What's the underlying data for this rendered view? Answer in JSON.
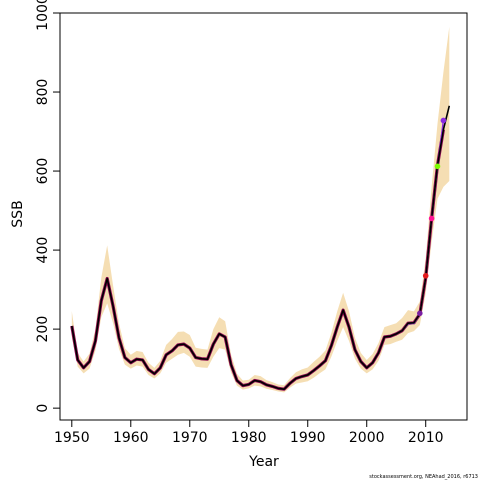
{
  "chart_data": {
    "type": "line",
    "xlabel": "Year",
    "ylabel": "SSB",
    "xlim": [
      1948,
      2017
    ],
    "ylim": [
      -30,
      1000
    ],
    "xticks": [
      "1950",
      "1960",
      "1970",
      "1980",
      "1990",
      "2000",
      "2010"
    ],
    "yticks": [
      "0",
      "200",
      "400",
      "600",
      "800",
      "1000"
    ],
    "grid": false,
    "legend": "none",
    "colors": {
      "band": "#f5deb3",
      "line": "#000000",
      "retro": "#8b0a50"
    },
    "series": [
      {
        "x": [
          1950,
          1951,
          1952,
          1953,
          1954,
          1955,
          1956,
          1957,
          1958,
          1959,
          1960,
          1961,
          1962,
          1963,
          1964,
          1965,
          1966,
          1967,
          1968,
          1969,
          1970,
          1971,
          1972,
          1973,
          1974,
          1975,
          1976,
          1977,
          1978,
          1979,
          1980,
          1981,
          1982,
          1983,
          1984,
          1985,
          1986,
          1987,
          1988,
          1989,
          1990,
          1991,
          1992,
          1993,
          1994,
          1995,
          1996,
          1997,
          1998,
          1999,
          2000,
          2001,
          2002,
          2003,
          2004,
          2005,
          2006,
          2007,
          2008,
          2009,
          2010,
          2011,
          2012,
          2013,
          2014
        ],
        "values": [
          208,
          122,
          102,
          118,
          170,
          272,
          328,
          258,
          178,
          128,
          115,
          124,
          122,
          98,
          87,
          102,
          135,
          145,
          160,
          162,
          152,
          128,
          125,
          124,
          162,
          188,
          180,
          110,
          70,
          57,
          60,
          70,
          67,
          59,
          55,
          50,
          48,
          63,
          75,
          80,
          84,
          95,
          107,
          120,
          158,
          205,
          248,
          205,
          148,
          118,
          102,
          115,
          140,
          180,
          182,
          188,
          196,
          215,
          216,
          238,
          330,
          480,
          615,
          705,
          765
        ],
        "lower": [
          180,
          105,
          88,
          100,
          145,
          230,
          265,
          215,
          150,
          110,
          100,
          108,
          105,
          84,
          75,
          88,
          115,
          125,
          135,
          140,
          130,
          105,
          103,
          102,
          130,
          152,
          148,
          90,
          57,
          47,
          50,
          57,
          55,
          49,
          46,
          42,
          40,
          52,
          62,
          65,
          68,
          77,
          88,
          98,
          130,
          170,
          205,
          170,
          125,
          100,
          88,
          98,
          120,
          160,
          162,
          168,
          173,
          190,
          195,
          210,
          290,
          420,
          530,
          560,
          575
        ],
        "upper": [
          246,
          140,
          118,
          138,
          200,
          330,
          412,
          310,
          215,
          152,
          135,
          145,
          142,
          115,
          102,
          120,
          160,
          175,
          193,
          194,
          185,
          153,
          150,
          148,
          200,
          230,
          220,
          136,
          87,
          70,
          72,
          84,
          81,
          71,
          66,
          60,
          58,
          76,
          91,
          98,
          103,
          117,
          130,
          146,
          190,
          245,
          292,
          245,
          178,
          140,
          122,
          137,
          165,
          205,
          210,
          215,
          228,
          248,
          245,
          270,
          380,
          560,
          720,
          850,
          965
        ]
      }
    ],
    "retrospective": [
      {
        "years": [
          2005,
          2006,
          2007,
          2008,
          2009
        ],
        "values": [
          188,
          196,
          212,
          214,
          240
        ],
        "color": "#7a1fa2"
      },
      {
        "years": [
          2005,
          2006,
          2007,
          2008,
          2009,
          2010
        ],
        "values": [
          188,
          196,
          214,
          214,
          238,
          335
        ],
        "color": "#e41a1c"
      },
      {
        "years": [
          2005,
          2006,
          2007,
          2008,
          2009,
          2010,
          2011
        ],
        "values": [
          188,
          196,
          214,
          214,
          238,
          330,
          480
        ],
        "color": "#ff1493"
      },
      {
        "years": [
          2005,
          2006,
          2007,
          2008,
          2009,
          2010,
          2011,
          2012
        ],
        "values": [
          188,
          196,
          214,
          214,
          238,
          330,
          480,
          612
        ],
        "color": "#7cfc00"
      },
      {
        "years": [
          2005,
          2006,
          2007,
          2008,
          2009,
          2010,
          2011,
          2012,
          2013
        ],
        "values": [
          188,
          196,
          214,
          214,
          238,
          330,
          480,
          612,
          728
        ],
        "color": "#8a2be2"
      }
    ],
    "footnote": "stockassessment.org, NEAhad_2016, r6713"
  }
}
